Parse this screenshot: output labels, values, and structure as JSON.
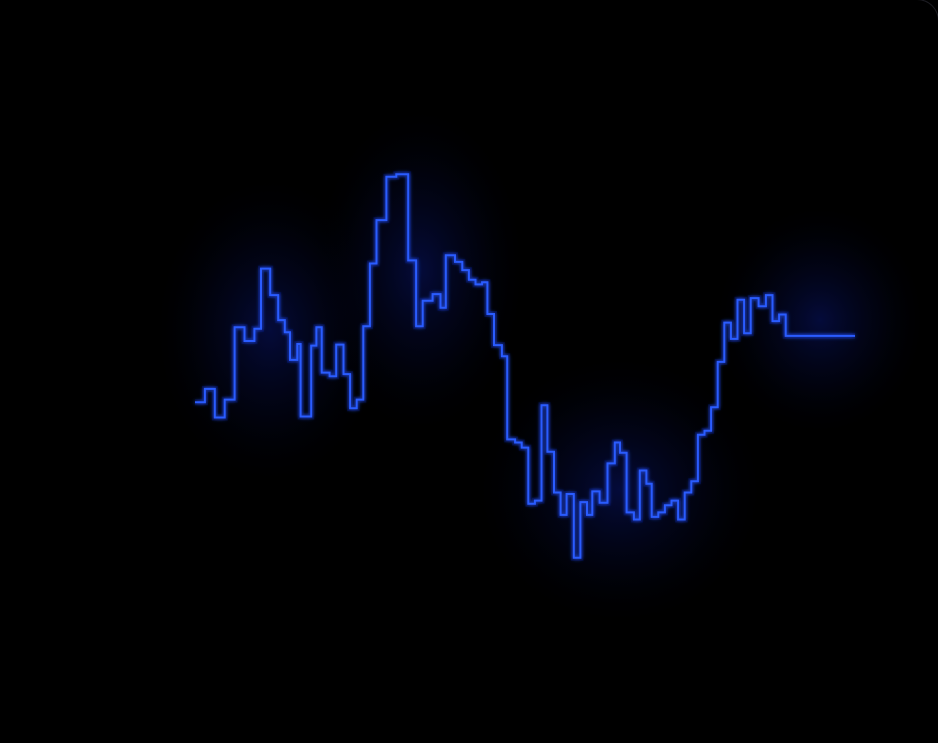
{
  "chart_data": {
    "type": "line",
    "step": true,
    "title": "",
    "xlabel": "",
    "ylabel": "",
    "axes_visible": false,
    "grid": false,
    "xlim": [
      0,
      100
    ],
    "ylim": [
      0,
      100
    ],
    "series": [
      {
        "color": "#2a5cff",
        "glow_color": "#0a1a8c",
        "points": [
          [
            0.0,
            43.1
          ],
          [
            1.5,
            45.7
          ],
          [
            3.0,
            40.1
          ],
          [
            4.5,
            43.6
          ],
          [
            6.0,
            57.8
          ],
          [
            7.5,
            55.1
          ],
          [
            9.0,
            57.5
          ],
          [
            10.0,
            69.3
          ],
          [
            11.4,
            64.1
          ],
          [
            12.6,
            59.2
          ],
          [
            13.6,
            56.8
          ],
          [
            14.4,
            51.4
          ],
          [
            15.5,
            54.5
          ],
          [
            16.0,
            40.3
          ],
          [
            17.6,
            54.2
          ],
          [
            18.4,
            57.8
          ],
          [
            19.2,
            48.9
          ],
          [
            20.4,
            48.2
          ],
          [
            21.4,
            54.4
          ],
          [
            22.5,
            48.6
          ],
          [
            23.5,
            41.9
          ],
          [
            24.5,
            43.6
          ],
          [
            25.5,
            58.0
          ],
          [
            26.5,
            70.3
          ],
          [
            27.5,
            78.8
          ],
          [
            29.0,
            87.3
          ],
          [
            30.5,
            87.8
          ],
          [
            32.3,
            70.9
          ],
          [
            33.5,
            58.0
          ],
          [
            34.5,
            63.0
          ],
          [
            36.0,
            64.3
          ],
          [
            37.2,
            61.6
          ],
          [
            38.0,
            71.9
          ],
          [
            39.4,
            70.6
          ],
          [
            40.5,
            69.0
          ],
          [
            41.5,
            67.1
          ],
          [
            42.5,
            66.2
          ],
          [
            43.5,
            66.6
          ],
          [
            44.3,
            60.4
          ],
          [
            45.3,
            54.3
          ],
          [
            46.5,
            52.1
          ],
          [
            47.3,
            35.8
          ],
          [
            48.5,
            35.2
          ],
          [
            49.5,
            34.2
          ],
          [
            50.5,
            23.2
          ],
          [
            51.5,
            23.8
          ],
          [
            52.5,
            42.5
          ],
          [
            53.4,
            33.4
          ],
          [
            54.4,
            25.4
          ],
          [
            55.4,
            21.0
          ],
          [
            56.3,
            25.1
          ],
          [
            57.4,
            12.6
          ],
          [
            58.4,
            23.5
          ],
          [
            59.4,
            21.0
          ],
          [
            60.2,
            25.6
          ],
          [
            61.3,
            23.4
          ],
          [
            62.5,
            31.1
          ],
          [
            63.6,
            35.2
          ],
          [
            64.4,
            33.2
          ],
          [
            65.4,
            21.5
          ],
          [
            66.5,
            20.1
          ],
          [
            67.4,
            29.7
          ],
          [
            68.4,
            27.1
          ],
          [
            69.2,
            20.6
          ],
          [
            70.2,
            21.5
          ],
          [
            71.2,
            22.9
          ],
          [
            72.2,
            23.8
          ],
          [
            73.2,
            20.1
          ],
          [
            74.2,
            25.4
          ],
          [
            75.2,
            27.6
          ],
          [
            76.2,
            36.7
          ],
          [
            77.2,
            37.5
          ],
          [
            78.2,
            42.1
          ],
          [
            79.2,
            51.0
          ],
          [
            80.2,
            58.7
          ],
          [
            81.2,
            55.5
          ],
          [
            82.2,
            63.2
          ],
          [
            83.2,
            56.6
          ],
          [
            84.2,
            63.5
          ],
          [
            85.4,
            61.9
          ],
          [
            86.5,
            64.1
          ],
          [
            87.5,
            59.0
          ],
          [
            88.5,
            60.3
          ],
          [
            89.5,
            56.1
          ]
        ]
      }
    ]
  }
}
